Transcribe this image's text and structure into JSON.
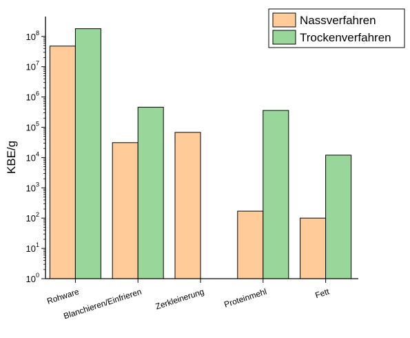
{
  "chart_data": {
    "type": "bar",
    "yscale": "log",
    "ylabel": "KBE/g",
    "xlabel": "",
    "title": "",
    "ylim": [
      1,
      300000000
    ],
    "categories": [
      "Rohware",
      "Blanchieren/Einfrieren",
      "Zerkleinerung",
      "Proteinmehl",
      "Fett"
    ],
    "series": [
      {
        "name": "Nassverfahren",
        "color": "#ffcc99",
        "values": [
          48000000,
          31000,
          68000,
          170,
          100
        ]
      },
      {
        "name": "Trockenverfahren",
        "color": "#99d699",
        "values": [
          180000000,
          460000,
          null,
          360000,
          12000
        ]
      }
    ],
    "yticks": [
      {
        "base": "10",
        "exp": "0"
      },
      {
        "base": "10",
        "exp": "1"
      },
      {
        "base": "10",
        "exp": "2"
      },
      {
        "base": "10",
        "exp": "3"
      },
      {
        "base": "10",
        "exp": "4"
      },
      {
        "base": "10",
        "exp": "5"
      },
      {
        "base": "10",
        "exp": "6"
      },
      {
        "base": "10",
        "exp": "7"
      },
      {
        "base": "10",
        "exp": "8"
      }
    ],
    "legend_position": "top-right",
    "grid": false
  }
}
